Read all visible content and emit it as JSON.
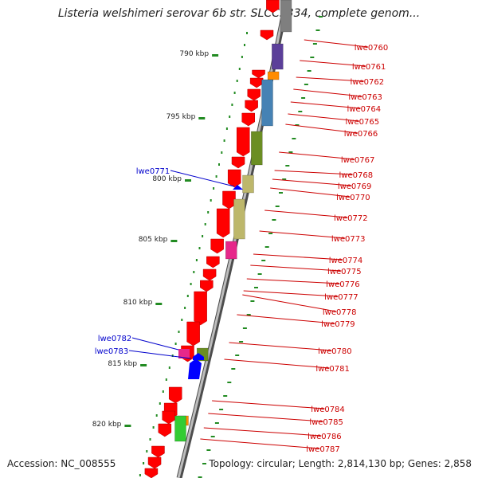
{
  "title": "Listeria welshimeri serovar 6b str. SLCC5334, complete genom...",
  "accession": "Accession: NC_008555",
  "summary": "Topology: circular; Length: 2,814,130 bp; Genes: 2,858",
  "ticks": [
    "790 kbp",
    "795 kbp",
    "800 kbp",
    "805 kbp",
    "810 kbp",
    "815 kbp",
    "820 kbp"
  ],
  "genes_outer": [
    "lwe0760",
    "lwe0761",
    "lwe0762",
    "lwe0763",
    "lwe0764",
    "lwe0765",
    "lwe0766",
    "lwe0767",
    "lwe0768",
    "lwe0769",
    "lwe0770",
    "lwe0772",
    "lwe0773",
    "lwe0774",
    "lwe0775",
    "lwe0776",
    "lwe0777",
    "lwe0778",
    "lwe0779",
    "lwe0780",
    "lwe0781",
    "lwe0784",
    "lwe0785",
    "lwe0786",
    "lwe0787"
  ],
  "genes_inner": [
    "lwe0771",
    "lwe0782",
    "lwe0783"
  ],
  "colors": {
    "forward": "#ff0000",
    "reverse": "#0000ff",
    "inner_label": "#0000cc",
    "outer_label": "#cc0000",
    "backbone": "#888888",
    "skew_dots": "#228b22",
    "feature_purple": "#5b3f99",
    "feature_steelblue": "#4682b4",
    "feature_olive": "#6b8e23",
    "feature_khaki": "#bdb76b",
    "feature_magenta": "#e6288a",
    "feature_lightgreen": "#33cc33",
    "feature_orange": "#ff8c00",
    "feature_gray": "#7f7f7f"
  }
}
